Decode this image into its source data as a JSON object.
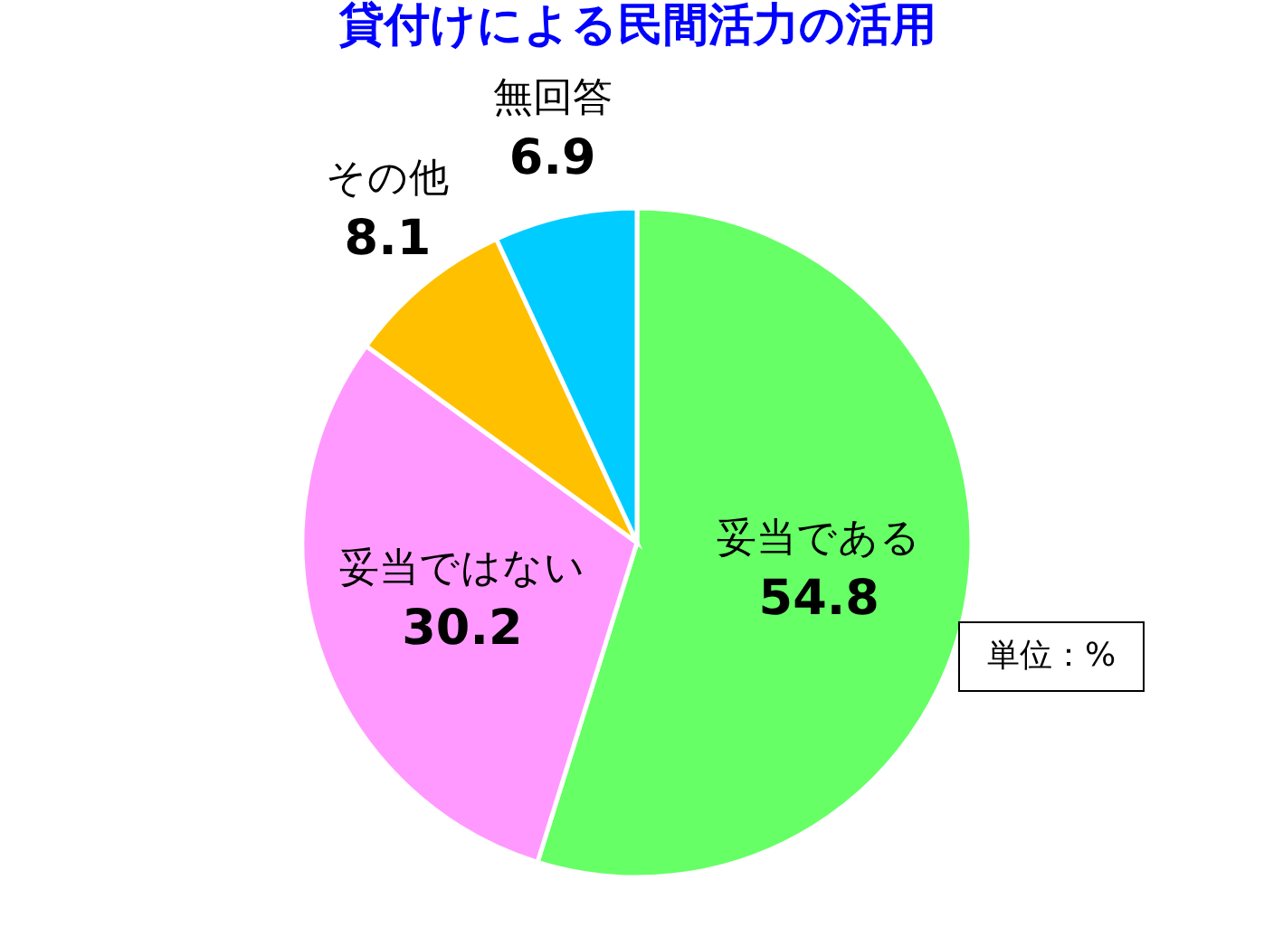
{
  "chart_data": {
    "type": "pie",
    "title": "貸付けによる民間活力の活用",
    "categories": [
      "妥当である",
      "妥当ではない",
      "その他",
      "無回答"
    ],
    "values": [
      54.8,
      30.2,
      8.1,
      6.9
    ],
    "colors": [
      "#66ff66",
      "#ff99ff",
      "#ffc000",
      "#00ccff"
    ],
    "data_labels": true,
    "legend": false,
    "annotations": [
      "単位：%"
    ]
  }
}
